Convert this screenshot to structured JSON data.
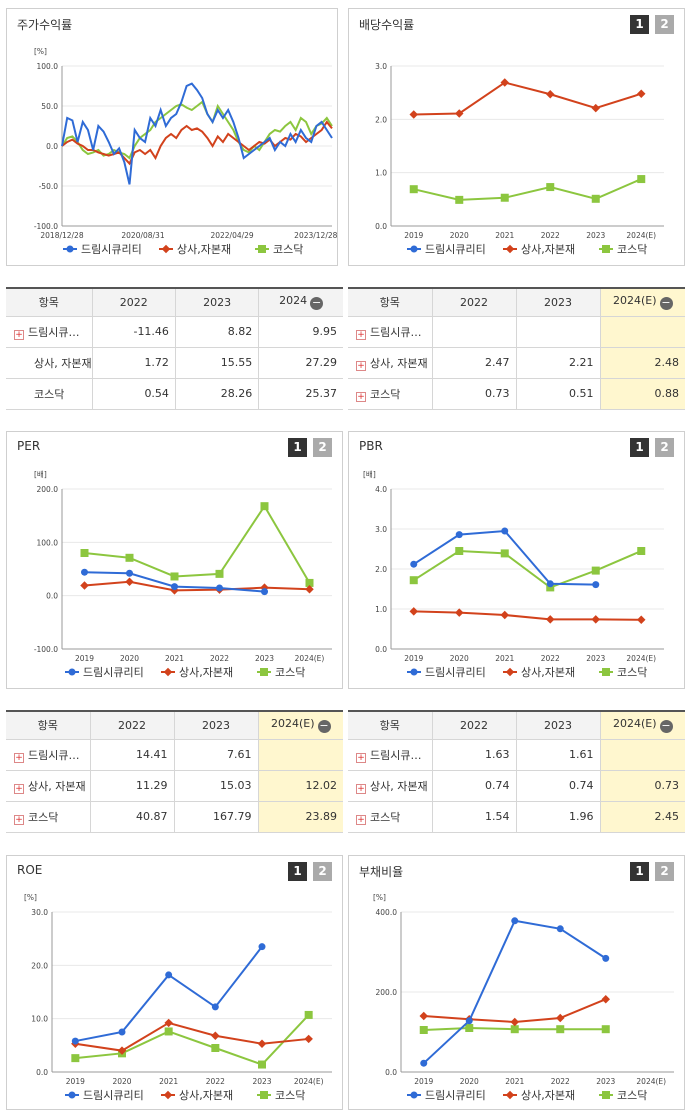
{
  "colors": {
    "s1": "#2f6bd6",
    "s2": "#d2421c",
    "s3": "#8cc63f"
  },
  "legend": [
    "드림시큐리티",
    "상사,자본재",
    "코스닥"
  ],
  "page_labels": [
    "1",
    "2"
  ],
  "chart_data": [
    {
      "id": "return",
      "type": "line",
      "title": "주가수익률",
      "ylabel": "[%]",
      "ylim": [
        -100,
        100
      ],
      "yticks": [
        "100.0",
        "50.0",
        "0.0",
        "-50.0",
        "-100.0"
      ],
      "xticks": [
        "2018/12/28",
        "2020/08/31",
        "2022/04/29",
        "2023/12/28"
      ],
      "series": [
        {
          "name": "드림시큐리티",
          "values": [
            0,
            35,
            32,
            5,
            30,
            20,
            -5,
            25,
            18,
            5,
            -10,
            -3,
            -20,
            -48,
            20,
            10,
            5,
            35,
            25,
            45,
            25,
            35,
            40,
            55,
            75,
            78,
            70,
            60,
            40,
            30,
            45,
            35,
            45,
            30,
            10,
            -15,
            -10,
            -5,
            0,
            5,
            10,
            -5,
            5,
            0,
            15,
            5,
            20,
            10,
            5,
            25,
            30,
            20,
            10
          ]
        },
        {
          "name": "상사,자본재",
          "values": [
            0,
            5,
            8,
            3,
            0,
            -5,
            -5,
            -8,
            -10,
            -12,
            -10,
            -8,
            -15,
            -22,
            -8,
            -5,
            -10,
            -5,
            -15,
            0,
            10,
            15,
            10,
            20,
            25,
            20,
            22,
            18,
            10,
            0,
            12,
            5,
            15,
            10,
            5,
            0,
            -5,
            0,
            5,
            3,
            8,
            0,
            5,
            10,
            8,
            15,
            12,
            5,
            10,
            15,
            20,
            30,
            22
          ]
        },
        {
          "name": "코스닥",
          "values": [
            0,
            10,
            12,
            5,
            -5,
            -10,
            -8,
            -5,
            -12,
            -10,
            -5,
            -8,
            -10,
            -15,
            0,
            10,
            15,
            20,
            30,
            35,
            40,
            45,
            50,
            52,
            48,
            45,
            50,
            55,
            40,
            30,
            50,
            40,
            30,
            20,
            5,
            -5,
            -8,
            0,
            -5,
            5,
            15,
            20,
            18,
            25,
            30,
            20,
            35,
            30,
            15,
            25,
            28,
            35,
            25
          ]
        }
      ]
    },
    {
      "id": "dividend",
      "type": "line",
      "title": "배당수익률",
      "ylim": [
        0,
        3
      ],
      "yticks": [
        "3.0",
        "2.0",
        "1.0",
        "0.0"
      ],
      "categories": [
        "2019",
        "2020",
        "2021",
        "2022",
        "2023",
        "2024(E)"
      ],
      "series": [
        {
          "name": "드림시큐리티",
          "values": [
            null,
            null,
            null,
            null,
            null,
            null
          ]
        },
        {
          "name": "상사,자본재",
          "values": [
            2.09,
            2.11,
            2.69,
            2.47,
            2.21,
            2.48
          ]
        },
        {
          "name": "코스닥",
          "values": [
            0.69,
            0.49,
            0.53,
            0.73,
            0.51,
            0.88
          ]
        }
      ]
    },
    {
      "id": "per",
      "type": "line",
      "title": "PER",
      "ylabel": "[배]",
      "ylim": [
        -100,
        200
      ],
      "yticks": [
        "200.0",
        "100.0",
        "0.0",
        "-100.0"
      ],
      "categories": [
        "2019",
        "2020",
        "2021",
        "2022",
        "2023",
        "2024(E)"
      ],
      "series": [
        {
          "name": "드림시큐리티",
          "values": [
            44,
            42,
            17,
            14.41,
            7.61,
            null
          ]
        },
        {
          "name": "상사,자본재",
          "values": [
            19,
            26,
            10,
            11.29,
            15.03,
            12.02
          ]
        },
        {
          "name": "코스닥",
          "values": [
            80,
            71,
            36,
            40.87,
            167.79,
            23.89
          ]
        }
      ]
    },
    {
      "id": "pbr",
      "type": "line",
      "title": "PBR",
      "ylabel": "[배]",
      "ylim": [
        0,
        4
      ],
      "yticks": [
        "4.0",
        "3.0",
        "2.0",
        "1.0",
        "0.0"
      ],
      "categories": [
        "2019",
        "2020",
        "2021",
        "2022",
        "2023",
        "2024(E)"
      ],
      "series": [
        {
          "name": "드림시큐리티",
          "values": [
            2.12,
            2.86,
            2.95,
            1.63,
            1.61,
            null
          ]
        },
        {
          "name": "상사,자본재",
          "values": [
            0.94,
            0.91,
            0.85,
            0.74,
            0.74,
            0.73
          ]
        },
        {
          "name": "코스닥",
          "values": [
            1.72,
            2.45,
            2.39,
            1.54,
            1.96,
            2.45
          ]
        }
      ]
    },
    {
      "id": "roe",
      "type": "line",
      "title": "ROE",
      "ylabel": "[%]",
      "ylim": [
        0,
        30
      ],
      "yticks": [
        "30.0",
        "20.0",
        "10.0",
        "0.0"
      ],
      "categories": [
        "2019",
        "2020",
        "2021",
        "2022",
        "2023",
        "2024(E)"
      ],
      "series": [
        {
          "name": "드림시큐리티",
          "values": [
            5.8,
            7.5,
            18.2,
            12.2,
            23.5,
            null
          ]
        },
        {
          "name": "상사,자본재",
          "values": [
            5.3,
            4.0,
            9.2,
            6.8,
            5.3,
            6.2
          ]
        },
        {
          "name": "코스닥",
          "values": [
            2.6,
            3.5,
            7.6,
            4.5,
            1.4,
            10.7
          ]
        }
      ]
    },
    {
      "id": "debt",
      "type": "line",
      "title": "부채비율",
      "ylabel": "[%]",
      "ylim": [
        0,
        400
      ],
      "yticks": [
        "400.0",
        "200.0",
        "0.0"
      ],
      "categories": [
        "2019",
        "2020",
        "2021",
        "2022",
        "2023",
        "2024(E)"
      ],
      "series": [
        {
          "name": "드림시큐리티",
          "values": [
            22,
            128,
            378,
            358,
            284,
            null
          ]
        },
        {
          "name": "상사,자본재",
          "values": [
            140,
            132,
            125,
            135,
            182,
            null
          ]
        },
        {
          "name": "코스닥",
          "values": [
            105,
            110,
            107,
            107,
            107,
            null
          ]
        }
      ]
    }
  ],
  "tables": {
    "return": {
      "header": [
        "항목",
        "2022",
        "2023",
        "2024"
      ],
      "rows": [
        {
          "label": "드림시큐…",
          "plus": true,
          "values": [
            "-11.46",
            "8.82",
            "9.95"
          ]
        },
        {
          "label": "상사, 자본재",
          "plus": false,
          "values": [
            "1.72",
            "15.55",
            "27.29"
          ]
        },
        {
          "label": "코스닥",
          "plus": false,
          "values": [
            "0.54",
            "28.26",
            "25.37"
          ]
        }
      ]
    },
    "dividend": {
      "header": [
        "항목",
        "2022",
        "2023",
        "2024(E)"
      ],
      "rows": [
        {
          "label": "드림시큐…",
          "plus": true,
          "values": [
            "",
            "",
            ""
          ]
        },
        {
          "label": "상사, 자본재",
          "plus": true,
          "values": [
            "2.47",
            "2.21",
            "2.48"
          ]
        },
        {
          "label": "코스닥",
          "plus": true,
          "values": [
            "0.73",
            "0.51",
            "0.88"
          ]
        }
      ]
    },
    "per": {
      "header": [
        "항목",
        "2022",
        "2023",
        "2024(E)"
      ],
      "rows": [
        {
          "label": "드림시큐…",
          "plus": true,
          "values": [
            "14.41",
            "7.61",
            ""
          ]
        },
        {
          "label": "상사, 자본재",
          "plus": true,
          "values": [
            "11.29",
            "15.03",
            "12.02"
          ]
        },
        {
          "label": "코스닥",
          "plus": true,
          "values": [
            "40.87",
            "167.79",
            "23.89"
          ]
        }
      ]
    },
    "pbr": {
      "header": [
        "항목",
        "2022",
        "2023",
        "2024(E)"
      ],
      "rows": [
        {
          "label": "드림시큐…",
          "plus": true,
          "values": [
            "1.63",
            "1.61",
            ""
          ]
        },
        {
          "label": "상사, 자본재",
          "plus": true,
          "values": [
            "0.74",
            "0.74",
            "0.73"
          ]
        },
        {
          "label": "코스닥",
          "plus": true,
          "values": [
            "1.54",
            "1.96",
            "2.45"
          ]
        }
      ]
    }
  }
}
